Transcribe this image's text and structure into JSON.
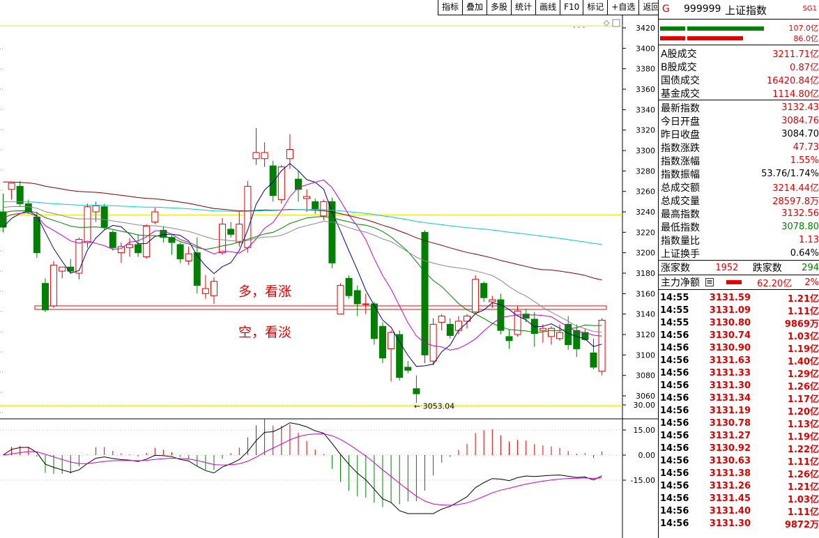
{
  "toolbar": [
    "指标",
    "叠加",
    "多股",
    "统计",
    "画线",
    "F10",
    "标记",
    "+自选",
    "返回"
  ],
  "chart": {
    "price_axis": [
      "3420",
      "3400",
      "3380",
      "3360",
      "3340",
      "3320",
      "3300",
      "3280",
      "3260",
      "3240",
      "3220",
      "3200",
      "3180",
      "3160",
      "3140",
      "3120",
      "3100",
      "3080",
      "3060"
    ],
    "low_label": "← 3053.04",
    "annotation_up": "多，看涨",
    "annotation_down": "空，看淡",
    "macd_axis": [
      "30.00",
      "15.00",
      "0.00",
      "-15.00"
    ],
    "colors": {
      "up": "#e00000",
      "down": "#008000",
      "ma5": "#000080",
      "ma10": "#cc00cc",
      "ma20": "#008000",
      "ma30": "#888888",
      "ma60": "#800000",
      "ma120": "#00cccc",
      "guide": "#e6e600",
      "support": "#e06060"
    }
  },
  "chart_data": {
    "type": "candlestick",
    "ylim": [
      3040,
      3430
    ],
    "candles": [
      {
        "o": 3240,
        "h": 3258,
        "l": 3220,
        "c": 3225
      },
      {
        "o": 3262,
        "h": 3268,
        "l": 3252,
        "c": 3268
      },
      {
        "o": 3265,
        "h": 3270,
        "l": 3245,
        "c": 3248
      },
      {
        "o": 3248,
        "h": 3252,
        "l": 3238,
        "c": 3240
      },
      {
        "o": 3235,
        "h": 3240,
        "l": 3195,
        "c": 3200
      },
      {
        "o": 3170,
        "h": 3175,
        "l": 3142,
        "c": 3144
      },
      {
        "o": 3148,
        "h": 3192,
        "l": 3146,
        "c": 3188
      },
      {
        "o": 3182,
        "h": 3185,
        "l": 3175,
        "c": 3186
      },
      {
        "o": 3186,
        "h": 3194,
        "l": 3180,
        "c": 3182
      },
      {
        "o": 3180,
        "h": 3215,
        "l": 3174,
        "c": 3213
      },
      {
        "o": 3210,
        "h": 3248,
        "l": 3205,
        "c": 3245
      },
      {
        "o": 3240,
        "h": 3250,
        "l": 3230,
        "c": 3246
      },
      {
        "o": 3245,
        "h": 3248,
        "l": 3222,
        "c": 3225
      },
      {
        "o": 3220,
        "h": 3222,
        "l": 3202,
        "c": 3205
      },
      {
        "o": 3200,
        "h": 3210,
        "l": 3190,
        "c": 3206
      },
      {
        "o": 3205,
        "h": 3214,
        "l": 3196,
        "c": 3208
      },
      {
        "o": 3208,
        "h": 3218,
        "l": 3196,
        "c": 3200
      },
      {
        "o": 3196,
        "h": 3228,
        "l": 3194,
        "c": 3226
      },
      {
        "o": 3230,
        "h": 3244,
        "l": 3228,
        "c": 3240
      },
      {
        "o": 3222,
        "h": 3226,
        "l": 3210,
        "c": 3215
      },
      {
        "o": 3215,
        "h": 3218,
        "l": 3198,
        "c": 3210
      },
      {
        "o": 3208,
        "h": 3210,
        "l": 3190,
        "c": 3194
      },
      {
        "o": 3192,
        "h": 3206,
        "l": 3188,
        "c": 3199
      },
      {
        "o": 3200,
        "h": 3215,
        "l": 3160,
        "c": 3168
      },
      {
        "o": 3160,
        "h": 3178,
        "l": 3155,
        "c": 3165
      },
      {
        "o": 3158,
        "h": 3176,
        "l": 3150,
        "c": 3172
      },
      {
        "o": 3200,
        "h": 3234,
        "l": 3198,
        "c": 3228
      },
      {
        "o": 3223,
        "h": 3230,
        "l": 3215,
        "c": 3218
      },
      {
        "o": 3210,
        "h": 3240,
        "l": 3206,
        "c": 3228
      },
      {
        "o": 3205,
        "h": 3270,
        "l": 3200,
        "c": 3265
      },
      {
        "o": 3292,
        "h": 3322,
        "l": 3286,
        "c": 3298
      },
      {
        "o": 3292,
        "h": 3308,
        "l": 3284,
        "c": 3298
      },
      {
        "o": 3285,
        "h": 3290,
        "l": 3250,
        "c": 3256
      },
      {
        "o": 3252,
        "h": 3286,
        "l": 3248,
        "c": 3284
      },
      {
        "o": 3292,
        "h": 3316,
        "l": 3282,
        "c": 3301
      },
      {
        "o": 3272,
        "h": 3280,
        "l": 3250,
        "c": 3262
      },
      {
        "o": 3253,
        "h": 3262,
        "l": 3240,
        "c": 3255
      },
      {
        "o": 3250,
        "h": 3253,
        "l": 3238,
        "c": 3243
      },
      {
        "o": 3236,
        "h": 3252,
        "l": 3232,
        "c": 3250
      },
      {
        "o": 3250,
        "h": 3254,
        "l": 3185,
        "c": 3190
      },
      {
        "o": 3140,
        "h": 3170,
        "l": 3140,
        "c": 3168
      },
      {
        "o": 3175,
        "h": 3178,
        "l": 3155,
        "c": 3158
      },
      {
        "o": 3163,
        "h": 3168,
        "l": 3138,
        "c": 3150
      },
      {
        "o": 3150,
        "h": 3160,
        "l": 3140,
        "c": 3150
      },
      {
        "o": 3150,
        "h": 3152,
        "l": 3110,
        "c": 3116
      },
      {
        "o": 3128,
        "h": 3132,
        "l": 3092,
        "c": 3097
      },
      {
        "o": 3106,
        "h": 3124,
        "l": 3074,
        "c": 3122
      },
      {
        "o": 3120,
        "h": 3124,
        "l": 3075,
        "c": 3078
      },
      {
        "o": 3088,
        "h": 3094,
        "l": 3082,
        "c": 3085
      },
      {
        "o": 3067,
        "h": 3080,
        "l": 3053,
        "c": 3062
      },
      {
        "o": 3220,
        "h": 3222,
        "l": 3092,
        "c": 3100
      },
      {
        "o": 3094,
        "h": 3136,
        "l": 3090,
        "c": 3130
      },
      {
        "o": 3132,
        "h": 3140,
        "l": 3124,
        "c": 3138
      },
      {
        "o": 3130,
        "h": 3136,
        "l": 3116,
        "c": 3119
      },
      {
        "o": 3124,
        "h": 3138,
        "l": 3120,
        "c": 3133
      },
      {
        "o": 3133,
        "h": 3140,
        "l": 3126,
        "c": 3138
      },
      {
        "o": 3142,
        "h": 3178,
        "l": 3140,
        "c": 3174
      },
      {
        "o": 3170,
        "h": 3172,
        "l": 3152,
        "c": 3156
      },
      {
        "o": 3152,
        "h": 3158,
        "l": 3146,
        "c": 3154
      },
      {
        "o": 3154,
        "h": 3160,
        "l": 3120,
        "c": 3124
      },
      {
        "o": 3118,
        "h": 3125,
        "l": 3106,
        "c": 3114
      },
      {
        "o": 3120,
        "h": 3148,
        "l": 3118,
        "c": 3143
      },
      {
        "o": 3140,
        "h": 3145,
        "l": 3132,
        "c": 3136
      },
      {
        "o": 3135,
        "h": 3142,
        "l": 3108,
        "c": 3121
      },
      {
        "o": 3124,
        "h": 3130,
        "l": 3112,
        "c": 3126
      },
      {
        "o": 3118,
        "h": 3128,
        "l": 3110,
        "c": 3126
      },
      {
        "o": 3116,
        "h": 3130,
        "l": 3114,
        "c": 3122
      },
      {
        "o": 3130,
        "h": 3138,
        "l": 3105,
        "c": 3110
      },
      {
        "o": 3124,
        "h": 3130,
        "l": 3098,
        "c": 3106
      },
      {
        "o": 3122,
        "h": 3126,
        "l": 3114,
        "c": 3115
      },
      {
        "o": 3102,
        "h": 3116,
        "l": 3086,
        "c": 3088
      },
      {
        "o": 3084,
        "h": 3136,
        "l": 3080,
        "c": 3134
      }
    ],
    "macd_ylim": [
      -35,
      35
    ]
  },
  "panel": {
    "code_prefix": "G",
    "code": "999999",
    "name": "上证指数",
    "badge": "SG1",
    "bar1_value": "107.0亿",
    "bar2_value": "86.0亿",
    "stats1": [
      {
        "k": "A股成交",
        "v": "3211.71亿",
        "c": "red"
      },
      {
        "k": "B股成交",
        "v": "0.87亿",
        "c": "red"
      },
      {
        "k": "国债成交",
        "v": "16420.84亿",
        "c": "red"
      },
      {
        "k": "基金成交",
        "v": "1114.80亿",
        "c": "red"
      }
    ],
    "stats2": [
      {
        "k": "最新指数",
        "v": "3132.43",
        "c": "red"
      },
      {
        "k": "今日开盘",
        "v": "3084.76",
        "c": "red"
      },
      {
        "k": "昨日收盘",
        "v": "3084.70",
        "c": "black"
      },
      {
        "k": "指数涨跌",
        "v": "47.73",
        "c": "red"
      },
      {
        "k": "指数涨幅",
        "v": "1.55%",
        "c": "red"
      },
      {
        "k": "指数振幅",
        "v": "53.76/1.74%",
        "c": "black"
      },
      {
        "k": "总成交额",
        "v": "3214.44亿",
        "c": "red"
      },
      {
        "k": "总成交量",
        "v": "28597.8万",
        "c": "red"
      },
      {
        "k": "最高指数",
        "v": "3132.56",
        "c": "red"
      },
      {
        "k": "最低指数",
        "v": "3078.80",
        "c": "green"
      },
      {
        "k": "指数量比",
        "v": "1.13",
        "c": "red"
      },
      {
        "k": "上证换手",
        "v": "0.64%",
        "c": "black"
      }
    ],
    "up_label": "涨家数",
    "up_count": "1952",
    "down_label": "跌家数",
    "down_count": "294",
    "flow_label": "主力净额",
    "flow_value": "62.20亿",
    "flow_pct": "2%",
    "ticks": [
      {
        "t": "14:55",
        "p": "3131.59",
        "a": "1.21亿"
      },
      {
        "t": "14:55",
        "p": "3131.09",
        "a": "1.11亿"
      },
      {
        "t": "14:55",
        "p": "3130.80",
        "a": "9869万"
      },
      {
        "t": "14:56",
        "p": "3130.74",
        "a": "1.03亿"
      },
      {
        "t": "14:56",
        "p": "3130.90",
        "a": "1.19亿"
      },
      {
        "t": "14:56",
        "p": "3131.63",
        "a": "1.40亿"
      },
      {
        "t": "14:56",
        "p": "3131.33",
        "a": "1.29亿"
      },
      {
        "t": "14:56",
        "p": "3131.30",
        "a": "1.26亿"
      },
      {
        "t": "14:56",
        "p": "3131.34",
        "a": "1.17亿"
      },
      {
        "t": "14:56",
        "p": "3131.19",
        "a": "1.20亿"
      },
      {
        "t": "14:56",
        "p": "3130.78",
        "a": "1.13亿"
      },
      {
        "t": "14:56",
        "p": "3131.27",
        "a": "1.19亿"
      },
      {
        "t": "14:56",
        "p": "3130.92",
        "a": "1.22亿"
      },
      {
        "t": "14:56",
        "p": "3130.63",
        "a": "1.11亿"
      },
      {
        "t": "14:56",
        "p": "3131.38",
        "a": "1.26亿"
      },
      {
        "t": "14:56",
        "p": "3131.26",
        "a": "1.21亿"
      },
      {
        "t": "14:56",
        "p": "3131.45",
        "a": "1.03亿"
      },
      {
        "t": "14:56",
        "p": "3131.40",
        "a": "1.11亿"
      },
      {
        "t": "14:56",
        "p": "3131.30",
        "a": "9872万"
      }
    ]
  }
}
